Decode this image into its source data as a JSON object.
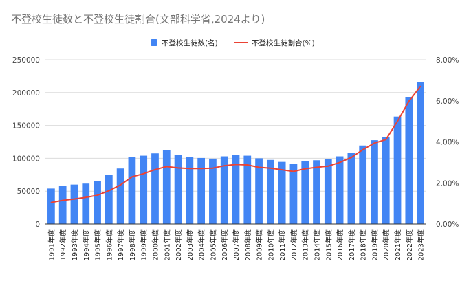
{
  "chart_data": {
    "type": "bar",
    "title": "不登校生徒数と不登校生徒割合(文部科学省,2024より)",
    "categories": [
      "1991年度",
      "1992年度",
      "1993年度",
      "1994年度",
      "1995年度",
      "1996年度",
      "1997年度",
      "1998年度",
      "1999年度",
      "2000年度",
      "2001年度",
      "2002年度",
      "2003年度",
      "2004年度",
      "2005年度",
      "2006年度",
      "2007年度",
      "2008年度",
      "2009年度",
      "2010年度",
      "2011年度",
      "2012年度",
      "2013年度",
      "2014年度",
      "2015年度",
      "2016年度",
      "2017年度",
      "2018年度",
      "2019年度",
      "2020年度",
      "2021年度",
      "2022年度",
      "2023年度"
    ],
    "series": [
      {
        "name": "不登校生徒数(名)",
        "type": "bar",
        "axis": "left",
        "color": "#4285f4",
        "values": [
          54000,
          58500,
          60000,
          61500,
          65000,
          74500,
          84500,
          101500,
          104000,
          107500,
          112000,
          105500,
          102000,
          100500,
          99500,
          103000,
          105500,
          104000,
          100000,
          97500,
          94500,
          91500,
          95500,
          97000,
          98500,
          103000,
          108500,
          119500,
          127500,
          132500,
          163500,
          193500,
          216000
        ]
      },
      {
        "name": "不登校生徒割合(%)",
        "type": "line",
        "axis": "right",
        "color": "#ea4335",
        "values": [
          1.05,
          1.15,
          1.22,
          1.3,
          1.4,
          1.62,
          1.9,
          2.3,
          2.45,
          2.65,
          2.8,
          2.73,
          2.7,
          2.7,
          2.72,
          2.84,
          2.9,
          2.88,
          2.76,
          2.72,
          2.64,
          2.56,
          2.69,
          2.76,
          2.82,
          3.0,
          3.24,
          3.62,
          3.94,
          4.11,
          5.0,
          5.98,
          6.71
        ]
      }
    ],
    "y_left": {
      "ylim": [
        0,
        250000
      ],
      "ticks": [
        "0",
        "50000",
        "100000",
        "150000",
        "200000",
        "250000"
      ]
    },
    "y_right": {
      "ylim": [
        0,
        8
      ],
      "ticks": [
        "0.00%",
        "2.00%",
        "4.00%",
        "6.00%",
        "8.00%"
      ]
    },
    "legend": "top-center",
    "grid": true
  }
}
